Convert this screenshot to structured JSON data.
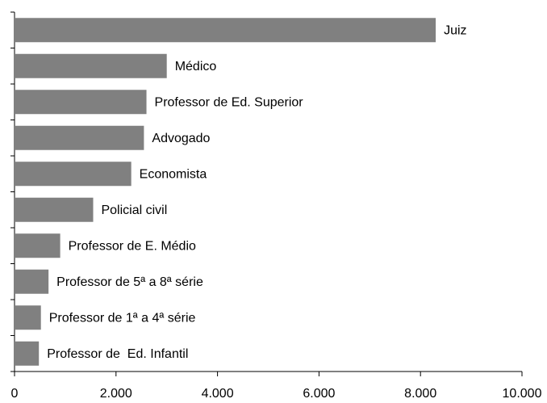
{
  "chart_data": {
    "type": "bar",
    "orientation": "horizontal",
    "categories": [
      "Juiz",
      "Médico",
      "Professor de Ed. Superior",
      "Advogado",
      "Economista",
      "Policial civil",
      "Professor de E. Médio",
      "Professor de 5ª a 8ª série",
      "Professor de 1ª a 4ª série",
      "Professor de  Ed. Infantil"
    ],
    "values": [
      8300,
      3000,
      2600,
      2550,
      2300,
      1550,
      900,
      670,
      520,
      480
    ],
    "color": "#808080",
    "xlim": [
      0,
      10000
    ],
    "xticks": [
      0,
      {
        "value": 2000,
        "label": "2.000"
      },
      {
        "value": 4000,
        "label": "4.000"
      },
      {
        "value": 6000,
        "label": "6.000"
      },
      {
        "value": 8000,
        "label": "8.000"
      },
      {
        "value": 10000,
        "label": "10.000"
      }
    ]
  }
}
